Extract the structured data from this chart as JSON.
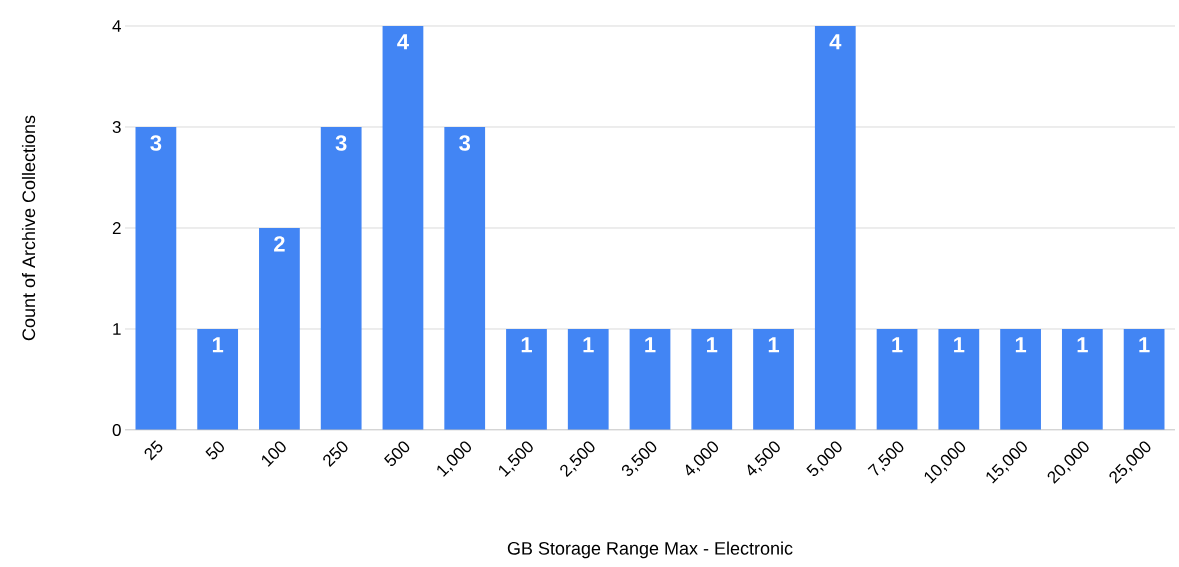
{
  "chart_data": {
    "type": "bar",
    "xlabel": "GB Storage Range Max - Electronic",
    "ylabel": "Count of Archive Collections",
    "categories": [
      "25",
      "50",
      "100",
      "250",
      "500",
      "1,000",
      "1,500",
      "2,500",
      "3,500",
      "4,000",
      "4,500",
      "5,000",
      "7,500",
      "10,000",
      "15,000",
      "20,000",
      "25,000"
    ],
    "values": [
      3,
      1,
      2,
      3,
      4,
      3,
      1,
      1,
      1,
      1,
      1,
      4,
      1,
      1,
      1,
      1,
      1
    ],
    "color": "#4285f4",
    "ylim": [
      0,
      4
    ],
    "yticks": [
      0,
      1,
      2,
      3,
      4
    ],
    "grid": "y",
    "data_labels": true
  }
}
